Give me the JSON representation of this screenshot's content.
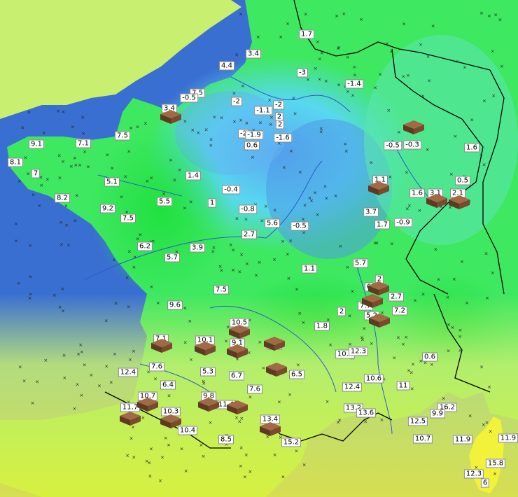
{
  "map": {
    "colors": {
      "sea": "#3a6fd2",
      "cold": "#58c8f0",
      "cool": "#7ef0c0",
      "mild": "#3ee860",
      "warm": "#c8ef70",
      "hot": "#f2f23a",
      "border": "#000000",
      "river": "#2a5cc8",
      "station_mark": "#7a4a2e"
    },
    "values": [
      {
        "v": "1.7"
      },
      {
        "v": "3.4"
      },
      {
        "v": "4.4"
      },
      {
        "v": "-3"
      },
      {
        "v": "-1.4"
      },
      {
        "v": "7.5"
      },
      {
        "v": "-0.5"
      },
      {
        "v": "-2"
      },
      {
        "v": "-2"
      },
      {
        "v": "-1.1"
      },
      {
        "v": "2"
      },
      {
        "v": "2"
      },
      {
        "v": "3.4"
      },
      {
        "v": "7.5"
      },
      {
        "v": "-2"
      },
      {
        "v": "-1.9"
      },
      {
        "v": "-1.6"
      },
      {
        "v": "0.6"
      },
      {
        "v": "9.1"
      },
      {
        "v": "7.1"
      },
      {
        "v": "8.1"
      },
      {
        "v": "7"
      },
      {
        "v": "5.1"
      },
      {
        "v": "1.4"
      },
      {
        "v": "-0.4"
      },
      {
        "v": "1"
      },
      {
        "v": "8.2"
      },
      {
        "v": "9.2"
      },
      {
        "v": "5.5"
      },
      {
        "v": "7.5"
      },
      {
        "v": "-0.8"
      },
      {
        "v": "-0.5"
      },
      {
        "v": "-0.3"
      },
      {
        "v": "1.6"
      },
      {
        "v": "1.1"
      },
      {
        "v": "0.5"
      },
      {
        "v": "1.6"
      },
      {
        "v": "3.1"
      },
      {
        "v": "2.1"
      },
      {
        "v": "3.7"
      },
      {
        "v": "1.7"
      },
      {
        "v": "-0.9"
      },
      {
        "v": "5.6"
      },
      {
        "v": "-0.5"
      },
      {
        "v": "2.7"
      },
      {
        "v": "6.2"
      },
      {
        "v": "3.9"
      },
      {
        "v": "5.7"
      },
      {
        "v": "1.1"
      },
      {
        "v": "5.7"
      },
      {
        "v": "7.5"
      },
      {
        "v": "9.6"
      },
      {
        "v": "2"
      },
      {
        "v": "6"
      },
      {
        "v": "2.7"
      },
      {
        "v": "7.7"
      },
      {
        "v": "7.2"
      },
      {
        "v": "2"
      },
      {
        "v": "5.2"
      },
      {
        "v": "10.5"
      },
      {
        "v": "1.8"
      },
      {
        "v": "7.1"
      },
      {
        "v": "10.1"
      },
      {
        "v": "9.1"
      },
      {
        "v": "5.3"
      },
      {
        "v": "10.4"
      },
      {
        "v": "12.3"
      },
      {
        "v": "12.4"
      },
      {
        "v": "7.6"
      },
      {
        "v": "5.3"
      },
      {
        "v": "3.4"
      },
      {
        "v": "6.5"
      },
      {
        "v": "10.6"
      },
      {
        "v": "0.6"
      },
      {
        "v": "6.4"
      },
      {
        "v": "6.7"
      },
      {
        "v": "7.6"
      },
      {
        "v": "12.4"
      },
      {
        "v": "11"
      },
      {
        "v": "10.7"
      },
      {
        "v": "9.8"
      },
      {
        "v": "11.4"
      },
      {
        "v": "11.7"
      },
      {
        "v": "10.3"
      },
      {
        "v": "13.2"
      },
      {
        "v": "13.6"
      },
      {
        "v": "16.2"
      },
      {
        "v": "9.9"
      },
      {
        "v": "13.4"
      },
      {
        "v": "12.5"
      },
      {
        "v": "10.4"
      },
      {
        "v": "8.5"
      },
      {
        "v": "15.2"
      },
      {
        "v": "10.7"
      },
      {
        "v": "11.9"
      },
      {
        "v": "11.9"
      },
      {
        "v": "15.8"
      },
      {
        "v": "12.3"
      },
      {
        "v": "6"
      }
    ]
  }
}
